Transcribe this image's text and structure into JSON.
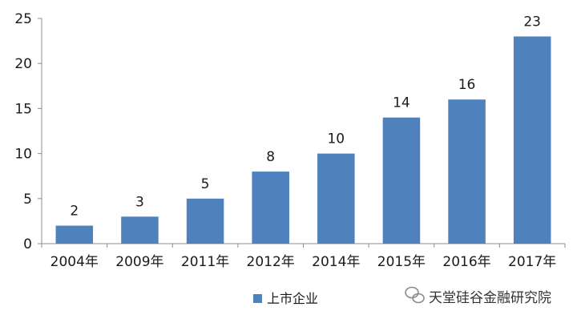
{
  "chart_data": {
    "type": "bar",
    "categories": [
      "2004年",
      "2009年",
      "2011年",
      "2012年",
      "2014年",
      "2015年",
      "2016年",
      "2017年"
    ],
    "series": [
      {
        "name": "上市企业",
        "values": [
          2,
          3,
          5,
          8,
          10,
          14,
          16,
          23
        ]
      }
    ],
    "ylim": [
      0,
      25
    ],
    "yticks": [
      0,
      5,
      10,
      15,
      20,
      25
    ],
    "grid": false,
    "legend": "bottom",
    "colors": {
      "bar": "#4f81bd",
      "axis": "#8c8c8c"
    }
  },
  "watermark": {
    "text": "天堂硅谷金融研究院",
    "icon": "wechat-icon"
  }
}
